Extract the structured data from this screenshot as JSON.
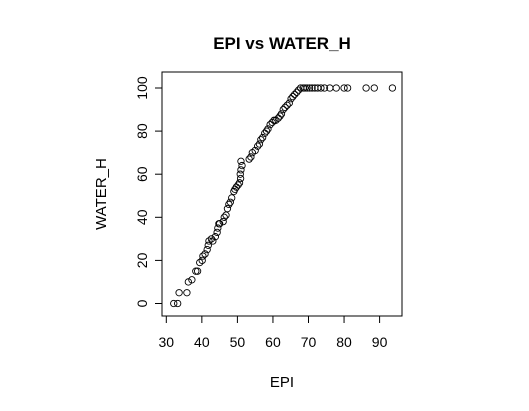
{
  "chart_data": {
    "type": "scatter",
    "title": "EPI vs WATER_H",
    "xlabel": "EPI",
    "ylabel": "WATER_H",
    "xlim": [
      30,
      95
    ],
    "ylim": [
      0,
      100
    ],
    "xticks": [
      30,
      40,
      50,
      60,
      70,
      80,
      90
    ],
    "yticks": [
      0,
      20,
      40,
      60,
      80,
      100
    ],
    "grid": false,
    "colors": {
      "points": "#000000",
      "frame": "#000000",
      "background": "#ffffff"
    },
    "series": [
      {
        "points": [
          [
            32.1,
            0
          ],
          [
            33.2,
            0
          ],
          [
            33.6,
            5
          ],
          [
            35.8,
            5
          ],
          [
            36.2,
            10
          ],
          [
            37.2,
            11
          ],
          [
            38.3,
            15
          ],
          [
            38.8,
            15
          ],
          [
            39.4,
            19
          ],
          [
            40.1,
            20
          ],
          [
            40.3,
            22
          ],
          [
            40.9,
            23
          ],
          [
            41.5,
            25
          ],
          [
            41.8,
            27
          ],
          [
            42.0,
            29
          ],
          [
            42.7,
            30
          ],
          [
            43.1,
            29
          ],
          [
            43.8,
            31
          ],
          [
            44.3,
            33
          ],
          [
            44.5,
            35
          ],
          [
            44.8,
            37
          ],
          [
            45.0,
            37
          ],
          [
            46.0,
            38
          ],
          [
            46.3,
            40
          ],
          [
            46.8,
            41
          ],
          [
            47.2,
            44
          ],
          [
            47.6,
            46
          ],
          [
            48.0,
            47
          ],
          [
            48.4,
            49
          ],
          [
            49.0,
            52
          ],
          [
            49.3,
            53
          ],
          [
            49.7,
            54
          ],
          [
            50.2,
            55
          ],
          [
            50.6,
            56
          ],
          [
            50.9,
            58
          ],
          [
            50.8,
            60
          ],
          [
            51.0,
            62
          ],
          [
            51.3,
            64
          ],
          [
            51.0,
            66
          ],
          [
            53.3,
            67
          ],
          [
            53.8,
            68
          ],
          [
            54.2,
            70
          ],
          [
            55.0,
            71
          ],
          [
            55.7,
            73
          ],
          [
            56.2,
            74
          ],
          [
            56.6,
            76
          ],
          [
            57.1,
            77
          ],
          [
            57.7,
            79
          ],
          [
            58.2,
            80
          ],
          [
            58.6,
            81
          ],
          [
            59.2,
            83
          ],
          [
            59.8,
            84
          ],
          [
            60.3,
            85
          ],
          [
            60.8,
            85
          ],
          [
            61.5,
            86
          ],
          [
            62.0,
            87
          ],
          [
            62.4,
            88
          ],
          [
            62.9,
            90
          ],
          [
            63.4,
            91
          ],
          [
            64.0,
            92
          ],
          [
            64.6,
            93
          ],
          [
            65.1,
            95
          ],
          [
            65.6,
            96
          ],
          [
            66.1,
            97
          ],
          [
            66.7,
            98
          ],
          [
            67.2,
            99
          ],
          [
            67.8,
            100
          ],
          [
            68.5,
            100
          ],
          [
            69.0,
            100
          ],
          [
            69.6,
            100
          ],
          [
            70.3,
            100
          ],
          [
            71.0,
            100
          ],
          [
            71.8,
            100
          ],
          [
            72.6,
            100
          ],
          [
            73.5,
            100
          ],
          [
            74.5,
            100
          ],
          [
            76.0,
            100
          ],
          [
            77.8,
            100
          ],
          [
            80.0,
            100
          ],
          [
            81.0,
            100
          ],
          [
            86.2,
            100
          ],
          [
            88.5,
            100
          ],
          [
            93.6,
            100
          ]
        ]
      }
    ]
  }
}
